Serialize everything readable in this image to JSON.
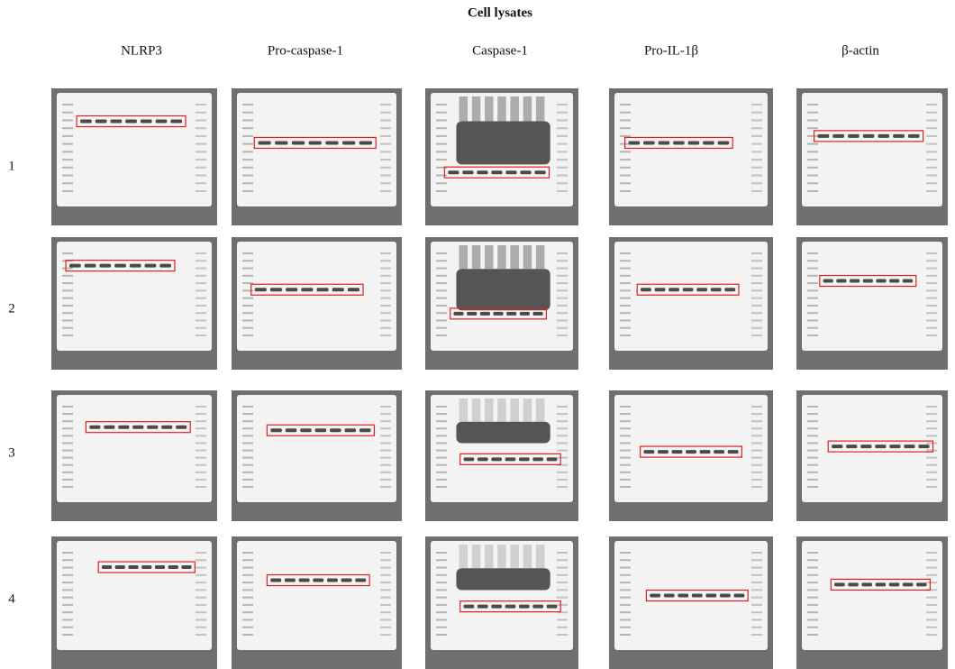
{
  "title": "Cell lysates",
  "columns": [
    "NLRP3",
    "Pro-caspase-1",
    "Caspase-1",
    "Pro-IL-1β",
    "β-actin"
  ],
  "rows": [
    "1",
    "2",
    "3",
    "4"
  ]
}
